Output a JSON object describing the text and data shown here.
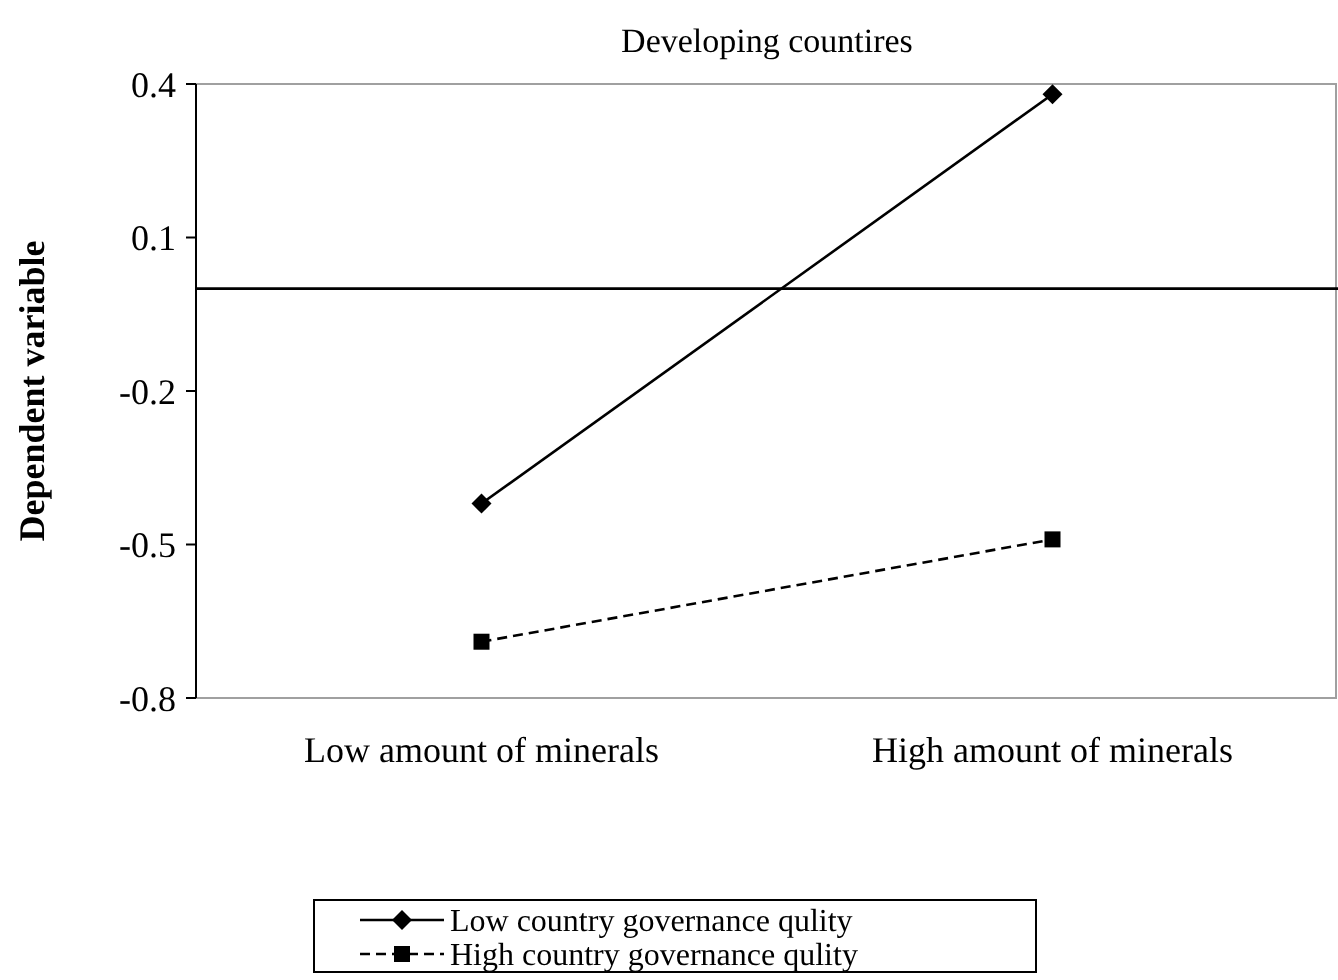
{
  "chart_data": {
    "type": "line",
    "title": "Developing countires",
    "ylabel": "Dependent variable",
    "categories": [
      "Low amount of minerals",
      "High amount of minerals"
    ],
    "series": [
      {
        "name": "Low country governance qulity",
        "color": "#000000",
        "values": [
          -0.42,
          0.38
        ],
        "marker": "diamond",
        "line_style": "solid"
      },
      {
        "name": "High country governance qulity",
        "color": "#000000",
        "values": [
          -0.69,
          -0.49
        ],
        "marker": "square",
        "line_style": "dashed"
      }
    ],
    "ylim": [
      -0.8,
      0.4
    ],
    "yticks": [
      {
        "value": 0.4,
        "label": "0.4"
      },
      {
        "value": 0.1,
        "label": "0.1"
      },
      {
        "value": -0.2,
        "label": "-0.2"
      },
      {
        "value": -0.5,
        "label": "-0.5"
      },
      {
        "value": -0.8,
        "label": "-0.8"
      }
    ],
    "ref_lines": [
      {
        "axis": "y",
        "value": 0,
        "color": "#000000"
      }
    ],
    "grid": false,
    "legend": "bottom"
  }
}
